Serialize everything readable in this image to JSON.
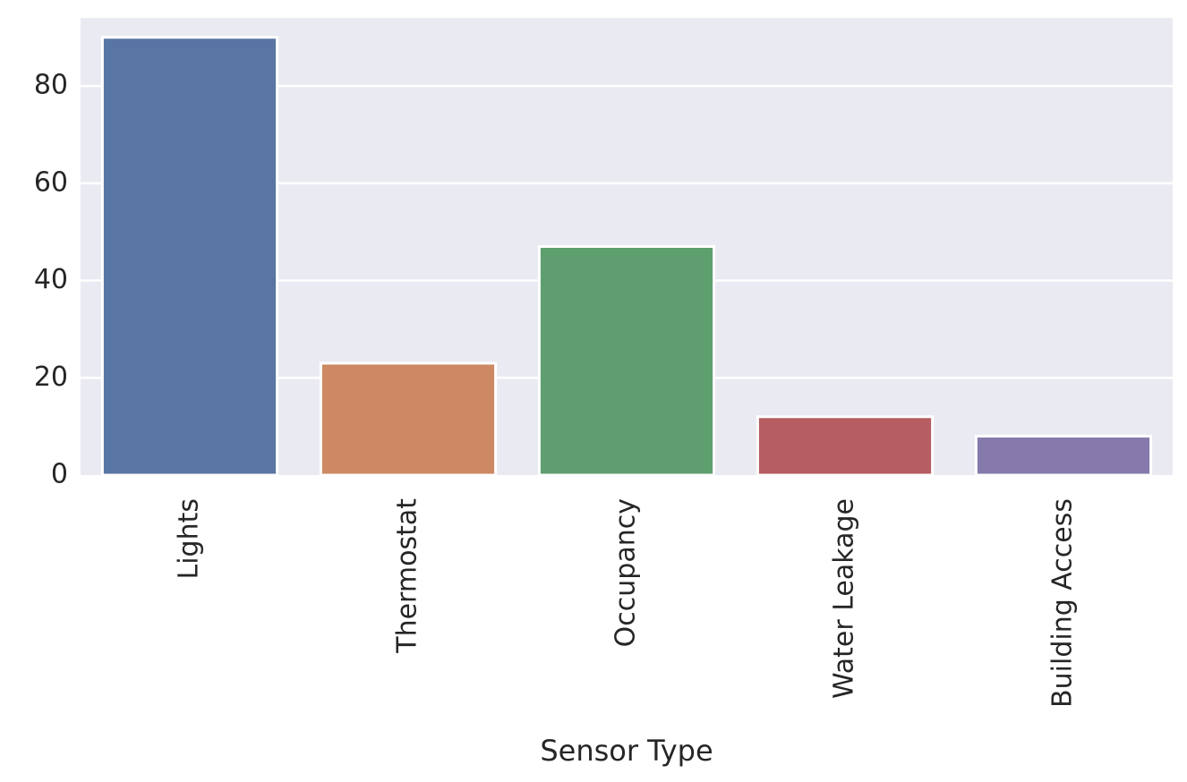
{
  "chart_data": {
    "type": "bar",
    "title": "",
    "xlabel": "Sensor Type",
    "ylabel": "",
    "categories": [
      "Lights",
      "Thermostat",
      "Occupancy",
      "Water Leakage",
      "Building Access"
    ],
    "values": [
      90,
      23,
      47,
      12,
      8
    ],
    "ylim": [
      0,
      94
    ],
    "yticks": [
      0,
      20,
      40,
      60,
      80
    ],
    "ytick_labels": [
      "0",
      "20",
      "40",
      "60",
      "80"
    ],
    "grid": true,
    "legend": "none",
    "colors": [
      "#5875a4",
      "#cc8963",
      "#5f9e6e",
      "#b55d60",
      "#857aab"
    ],
    "background_color": "#eaeaf2",
    "grid_color": "#ffffff"
  }
}
